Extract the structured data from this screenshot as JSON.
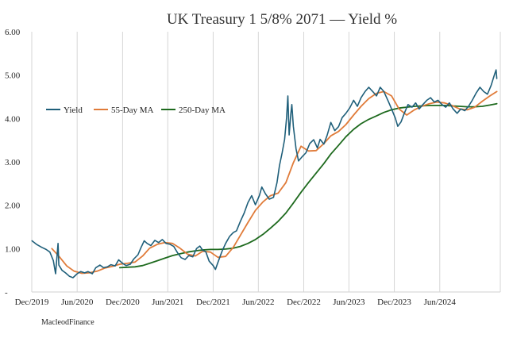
{
  "chart_data": {
    "type": "line",
    "title": "UK Treasury 1 5/8% 2071 — Yield %",
    "xlabel": "",
    "ylabel": "",
    "ylim": [
      0,
      6
    ],
    "xlim": [
      "2019-12-01",
      "2025-01-31"
    ],
    "yticks": [
      {
        "value": 6,
        "label": "6.00"
      },
      {
        "value": 5,
        "label": "5.00"
      },
      {
        "value": 4,
        "label": "4.00"
      },
      {
        "value": 3,
        "label": "3.00"
      },
      {
        "value": 2,
        "label": "2.00"
      },
      {
        "value": 1,
        "label": "1.00"
      },
      {
        "value": 0,
        "label": "-"
      }
    ],
    "xticks": [
      {
        "date": "2019-12-01",
        "label": "Dec/2019"
      },
      {
        "date": "2020-06-01",
        "label": "Jun/2020"
      },
      {
        "date": "2020-12-01",
        "label": "Dec/2020"
      },
      {
        "date": "2021-06-01",
        "label": "Jun/2021"
      },
      {
        "date": "2021-12-01",
        "label": "Dec/2021"
      },
      {
        "date": "2022-06-01",
        "label": "Jun/2022"
      },
      {
        "date": "2022-12-01",
        "label": "Dec/2022"
      },
      {
        "date": "2023-06-01",
        "label": "Jun/2023"
      },
      {
        "date": "2023-12-01",
        "label": "Dec/2023"
      },
      {
        "date": "2024-06-01",
        "label": "Jun/2024"
      }
    ],
    "grid": "vertical",
    "legend_position": "upper-left",
    "series": [
      {
        "name": "Yield",
        "color": "#1f5f7a",
        "points": [
          [
            "2019-12-02",
            1.18
          ],
          [
            "2019-12-20",
            1.1
          ],
          [
            "2020-01-10",
            1.03
          ],
          [
            "2020-01-28",
            0.98
          ],
          [
            "2020-02-12",
            0.92
          ],
          [
            "2020-02-26",
            0.72
          ],
          [
            "2020-03-06",
            0.42
          ],
          [
            "2020-03-12",
            0.85
          ],
          [
            "2020-03-16",
            1.12
          ],
          [
            "2020-03-19",
            0.62
          ],
          [
            "2020-04-01",
            0.5
          ],
          [
            "2020-04-15",
            0.44
          ],
          [
            "2020-05-01",
            0.36
          ],
          [
            "2020-05-15",
            0.33
          ],
          [
            "2020-06-01",
            0.42
          ],
          [
            "2020-06-15",
            0.47
          ],
          [
            "2020-07-01",
            0.44
          ],
          [
            "2020-07-15",
            0.47
          ],
          [
            "2020-08-01",
            0.42
          ],
          [
            "2020-08-15",
            0.56
          ],
          [
            "2020-09-01",
            0.62
          ],
          [
            "2020-09-15",
            0.56
          ],
          [
            "2020-10-01",
            0.58
          ],
          [
            "2020-10-15",
            0.63
          ],
          [
            "2020-11-01",
            0.6
          ],
          [
            "2020-11-15",
            0.74
          ],
          [
            "2020-12-01",
            0.66
          ],
          [
            "2020-12-15",
            0.61
          ],
          [
            "2021-01-01",
            0.64
          ],
          [
            "2021-01-15",
            0.76
          ],
          [
            "2021-02-01",
            0.86
          ],
          [
            "2021-02-12",
            1.01
          ],
          [
            "2021-02-26",
            1.18
          ],
          [
            "2021-03-10",
            1.12
          ],
          [
            "2021-03-25",
            1.07
          ],
          [
            "2021-04-10",
            1.19
          ],
          [
            "2021-04-25",
            1.14
          ],
          [
            "2021-05-10",
            1.21
          ],
          [
            "2021-05-25",
            1.12
          ],
          [
            "2021-06-10",
            1.1
          ],
          [
            "2021-06-25",
            1.05
          ],
          [
            "2021-07-10",
            0.91
          ],
          [
            "2021-07-25",
            0.79
          ],
          [
            "2021-08-10",
            0.75
          ],
          [
            "2021-08-25",
            0.84
          ],
          [
            "2021-09-10",
            0.81
          ],
          [
            "2021-09-25",
            1.0
          ],
          [
            "2021-10-08",
            1.06
          ],
          [
            "2021-10-20",
            0.96
          ],
          [
            "2021-11-01",
            0.93
          ],
          [
            "2021-11-15",
            0.71
          ],
          [
            "2021-12-01",
            0.61
          ],
          [
            "2021-12-10",
            0.52
          ],
          [
            "2021-12-20",
            0.68
          ],
          [
            "2022-01-05",
            0.93
          ],
          [
            "2022-01-20",
            1.12
          ],
          [
            "2022-02-05",
            1.28
          ],
          [
            "2022-02-20",
            1.37
          ],
          [
            "2022-03-05",
            1.41
          ],
          [
            "2022-03-20",
            1.62
          ],
          [
            "2022-04-05",
            1.82
          ],
          [
            "2022-04-20",
            2.06
          ],
          [
            "2022-05-05",
            2.22
          ],
          [
            "2022-05-20",
            2.01
          ],
          [
            "2022-06-05",
            2.22
          ],
          [
            "2022-06-15",
            2.42
          ],
          [
            "2022-06-30",
            2.26
          ],
          [
            "2022-07-15",
            2.14
          ],
          [
            "2022-08-01",
            2.18
          ],
          [
            "2022-08-15",
            2.52
          ],
          [
            "2022-08-25",
            2.91
          ],
          [
            "2022-09-05",
            3.21
          ],
          [
            "2022-09-15",
            3.52
          ],
          [
            "2022-09-23",
            4.02
          ],
          [
            "2022-09-28",
            4.52
          ],
          [
            "2022-10-03",
            3.62
          ],
          [
            "2022-10-10",
            4.12
          ],
          [
            "2022-10-14",
            4.32
          ],
          [
            "2022-10-20",
            3.82
          ],
          [
            "2022-10-31",
            3.3
          ],
          [
            "2022-11-10",
            3.02
          ],
          [
            "2022-11-25",
            3.12
          ],
          [
            "2022-12-10",
            3.21
          ],
          [
            "2022-12-25",
            3.42
          ],
          [
            "2023-01-10",
            3.51
          ],
          [
            "2023-01-25",
            3.32
          ],
          [
            "2023-02-05",
            3.52
          ],
          [
            "2023-02-20",
            3.41
          ],
          [
            "2023-03-05",
            3.61
          ],
          [
            "2023-03-20",
            3.91
          ],
          [
            "2023-04-05",
            3.72
          ],
          [
            "2023-04-20",
            3.81
          ],
          [
            "2023-05-05",
            4.02
          ],
          [
            "2023-05-20",
            4.12
          ],
          [
            "2023-06-05",
            4.25
          ],
          [
            "2023-06-20",
            4.42
          ],
          [
            "2023-07-05",
            4.28
          ],
          [
            "2023-07-20",
            4.48
          ],
          [
            "2023-08-05",
            4.62
          ],
          [
            "2023-08-20",
            4.72
          ],
          [
            "2023-09-05",
            4.62
          ],
          [
            "2023-09-20",
            4.52
          ],
          [
            "2023-10-05",
            4.72
          ],
          [
            "2023-10-20",
            4.62
          ],
          [
            "2023-11-05",
            4.42
          ],
          [
            "2023-11-20",
            4.22
          ],
          [
            "2023-12-05",
            4.01
          ],
          [
            "2023-12-15",
            3.82
          ],
          [
            "2023-12-28",
            3.92
          ],
          [
            "2024-01-10",
            4.12
          ],
          [
            "2024-01-25",
            4.32
          ],
          [
            "2024-02-10",
            4.26
          ],
          [
            "2024-02-25",
            4.36
          ],
          [
            "2024-03-10",
            4.22
          ],
          [
            "2024-03-25",
            4.32
          ],
          [
            "2024-04-10",
            4.42
          ],
          [
            "2024-04-25",
            4.48
          ],
          [
            "2024-05-10",
            4.38
          ],
          [
            "2024-05-25",
            4.42
          ],
          [
            "2024-06-10",
            4.32
          ],
          [
            "2024-06-25",
            4.26
          ],
          [
            "2024-07-10",
            4.36
          ],
          [
            "2024-07-25",
            4.22
          ],
          [
            "2024-08-10",
            4.12
          ],
          [
            "2024-08-25",
            4.22
          ],
          [
            "2024-09-10",
            4.18
          ],
          [
            "2024-09-25",
            4.28
          ],
          [
            "2024-10-10",
            4.42
          ],
          [
            "2024-10-25",
            4.58
          ],
          [
            "2024-11-10",
            4.72
          ],
          [
            "2024-11-25",
            4.62
          ],
          [
            "2024-12-10",
            4.56
          ],
          [
            "2024-12-25",
            4.76
          ],
          [
            "2025-01-08",
            5.02
          ],
          [
            "2025-01-14",
            5.12
          ],
          [
            "2025-01-17",
            4.92
          ]
        ]
      },
      {
        "name": "55-Day MA",
        "color": "#e07b39",
        "points": [
          [
            "2020-02-20",
            1.0
          ],
          [
            "2020-03-20",
            0.82
          ],
          [
            "2020-04-20",
            0.6
          ],
          [
            "2020-05-20",
            0.48
          ],
          [
            "2020-06-20",
            0.43
          ],
          [
            "2020-07-20",
            0.44
          ],
          [
            "2020-08-20",
            0.48
          ],
          [
            "2020-09-20",
            0.55
          ],
          [
            "2020-10-20",
            0.59
          ],
          [
            "2020-11-20",
            0.64
          ],
          [
            "2020-12-20",
            0.66
          ],
          [
            "2021-01-20",
            0.69
          ],
          [
            "2021-02-20",
            0.83
          ],
          [
            "2021-03-20",
            1.01
          ],
          [
            "2021-04-20",
            1.1
          ],
          [
            "2021-05-20",
            1.14
          ],
          [
            "2021-06-20",
            1.12
          ],
          [
            "2021-07-20",
            1.01
          ],
          [
            "2021-08-20",
            0.87
          ],
          [
            "2021-09-20",
            0.83
          ],
          [
            "2021-10-20",
            0.94
          ],
          [
            "2021-11-20",
            0.92
          ],
          [
            "2021-12-20",
            0.8
          ],
          [
            "2022-01-20",
            0.82
          ],
          [
            "2022-02-20",
            1.03
          ],
          [
            "2022-03-20",
            1.3
          ],
          [
            "2022-04-20",
            1.6
          ],
          [
            "2022-05-20",
            1.88
          ],
          [
            "2022-06-20",
            2.08
          ],
          [
            "2022-07-20",
            2.22
          ],
          [
            "2022-08-20",
            2.28
          ],
          [
            "2022-09-20",
            2.52
          ],
          [
            "2022-10-20",
            2.98
          ],
          [
            "2022-11-20",
            3.36
          ],
          [
            "2022-12-20",
            3.25
          ],
          [
            "2023-01-20",
            3.26
          ],
          [
            "2023-02-20",
            3.42
          ],
          [
            "2023-03-20",
            3.6
          ],
          [
            "2023-04-20",
            3.7
          ],
          [
            "2023-05-20",
            3.86
          ],
          [
            "2023-06-20",
            4.08
          ],
          [
            "2023-07-20",
            4.28
          ],
          [
            "2023-08-20",
            4.46
          ],
          [
            "2023-09-20",
            4.58
          ],
          [
            "2023-10-20",
            4.62
          ],
          [
            "2023-11-20",
            4.52
          ],
          [
            "2023-12-20",
            4.22
          ],
          [
            "2024-01-20",
            4.08
          ],
          [
            "2024-02-20",
            4.2
          ],
          [
            "2024-03-20",
            4.28
          ],
          [
            "2024-04-20",
            4.34
          ],
          [
            "2024-05-20",
            4.38
          ],
          [
            "2024-06-20",
            4.36
          ],
          [
            "2024-07-20",
            4.3
          ],
          [
            "2024-08-20",
            4.22
          ],
          [
            "2024-09-20",
            4.2
          ],
          [
            "2024-10-20",
            4.26
          ],
          [
            "2024-11-20",
            4.4
          ],
          [
            "2024-12-20",
            4.52
          ],
          [
            "2025-01-17",
            4.62
          ]
        ]
      },
      {
        "name": "250-Day MA",
        "color": "#1e6a1e",
        "points": [
          [
            "2020-11-20",
            0.56
          ],
          [
            "2020-12-20",
            0.57
          ],
          [
            "2021-01-20",
            0.58
          ],
          [
            "2021-02-20",
            0.61
          ],
          [
            "2021-03-20",
            0.66
          ],
          [
            "2021-04-20",
            0.72
          ],
          [
            "2021-05-20",
            0.78
          ],
          [
            "2021-06-20",
            0.84
          ],
          [
            "2021-07-20",
            0.88
          ],
          [
            "2021-08-20",
            0.92
          ],
          [
            "2021-09-20",
            0.95
          ],
          [
            "2021-10-20",
            0.97
          ],
          [
            "2021-11-20",
            0.98
          ],
          [
            "2021-12-20",
            0.98
          ],
          [
            "2022-01-20",
            0.99
          ],
          [
            "2022-02-20",
            1.01
          ],
          [
            "2022-03-20",
            1.05
          ],
          [
            "2022-04-20",
            1.12
          ],
          [
            "2022-05-20",
            1.21
          ],
          [
            "2022-06-20",
            1.33
          ],
          [
            "2022-07-20",
            1.47
          ],
          [
            "2022-08-20",
            1.63
          ],
          [
            "2022-09-20",
            1.82
          ],
          [
            "2022-10-20",
            2.05
          ],
          [
            "2022-11-20",
            2.3
          ],
          [
            "2022-12-20",
            2.52
          ],
          [
            "2023-01-20",
            2.74
          ],
          [
            "2023-02-20",
            2.96
          ],
          [
            "2023-03-20",
            3.18
          ],
          [
            "2023-04-20",
            3.38
          ],
          [
            "2023-05-20",
            3.58
          ],
          [
            "2023-06-20",
            3.75
          ],
          [
            "2023-07-20",
            3.88
          ],
          [
            "2023-08-20",
            3.98
          ],
          [
            "2023-09-20",
            4.06
          ],
          [
            "2023-10-20",
            4.14
          ],
          [
            "2023-11-20",
            4.2
          ],
          [
            "2023-12-20",
            4.24
          ],
          [
            "2024-01-20",
            4.26
          ],
          [
            "2024-02-20",
            4.28
          ],
          [
            "2024-03-20",
            4.29
          ],
          [
            "2024-04-20",
            4.3
          ],
          [
            "2024-05-20",
            4.3
          ],
          [
            "2024-06-20",
            4.3
          ],
          [
            "2024-07-20",
            4.29
          ],
          [
            "2024-08-20",
            4.28
          ],
          [
            "2024-09-20",
            4.27
          ],
          [
            "2024-10-20",
            4.27
          ],
          [
            "2024-11-20",
            4.28
          ],
          [
            "2024-12-20",
            4.31
          ],
          [
            "2025-01-17",
            4.34
          ]
        ]
      }
    ]
  },
  "footer": {
    "credit": "MacleodFinance"
  }
}
